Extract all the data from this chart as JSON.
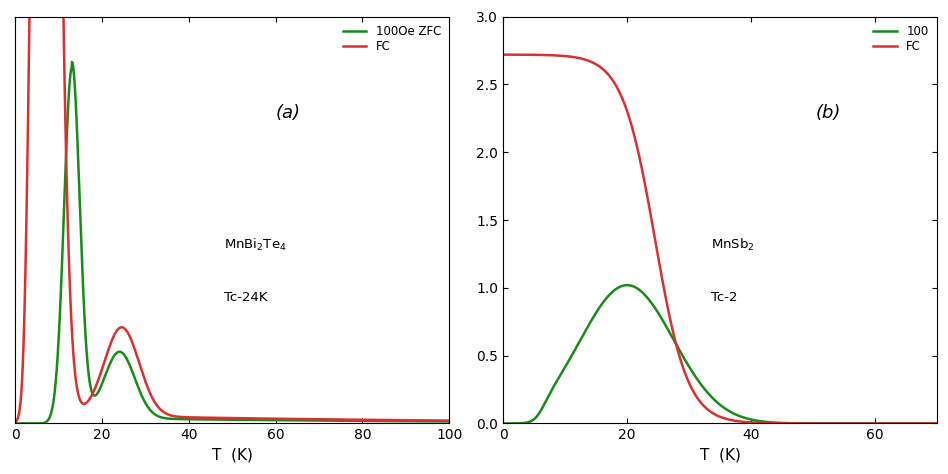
{
  "panel_a": {
    "label": "(a)",
    "annotation1": "MnBi$_2$Te$_4$",
    "annotation2": "Tc-24K",
    "xlabel": "T  (K)",
    "xlim": [
      0,
      100
    ],
    "ylim": [
      0,
      0.55
    ],
    "xticks": [
      0,
      20,
      40,
      60,
      80,
      100
    ],
    "legend_zfc": "100Oe ZFC",
    "legend_fc": "FC",
    "color_zfc": "#1a8a1a",
    "color_fc": "#d93030"
  },
  "panel_b": {
    "label": "(b)",
    "annotation1": "MnSb$_2$",
    "annotation2": "Tc-2",
    "xlabel": "T  (K)",
    "xlim": [
      0,
      70
    ],
    "ylim": [
      0,
      3.0
    ],
    "yticks": [
      0.0,
      0.5,
      1.0,
      1.5,
      2.0,
      2.5,
      3.0
    ],
    "xticks": [
      0,
      20,
      40,
      60
    ],
    "legend_zfc": "100",
    "legend_fc": "FC",
    "color_zfc": "#1a8a1a",
    "color_fc": "#d93030"
  },
  "fig_width": 9.48,
  "fig_height": 4.74,
  "dpi": 100,
  "background_color": "#ffffff"
}
